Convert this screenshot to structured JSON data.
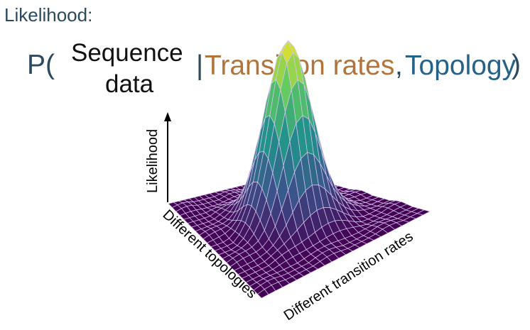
{
  "heading": "Likelihood:",
  "formula": {
    "open": "P(",
    "sequence_line1": "Sequence",
    "sequence_line2": "data",
    "separator": "|",
    "transition_rates": "Transition rates",
    "comma": ",",
    "topology": "Topology",
    "close": ")",
    "colors": {
      "dark": "#2c4a5e",
      "transition_rates": "#b0743c",
      "topology": "#246289"
    }
  },
  "plot": {
    "type": "surface",
    "z_label": "Likelihood",
    "left_axis_label": "Different topologies",
    "right_axis_label": "Different transition rates",
    "colormap": "viridis",
    "mesh_color": "#d9c8ee",
    "peak": "single central peak"
  }
}
